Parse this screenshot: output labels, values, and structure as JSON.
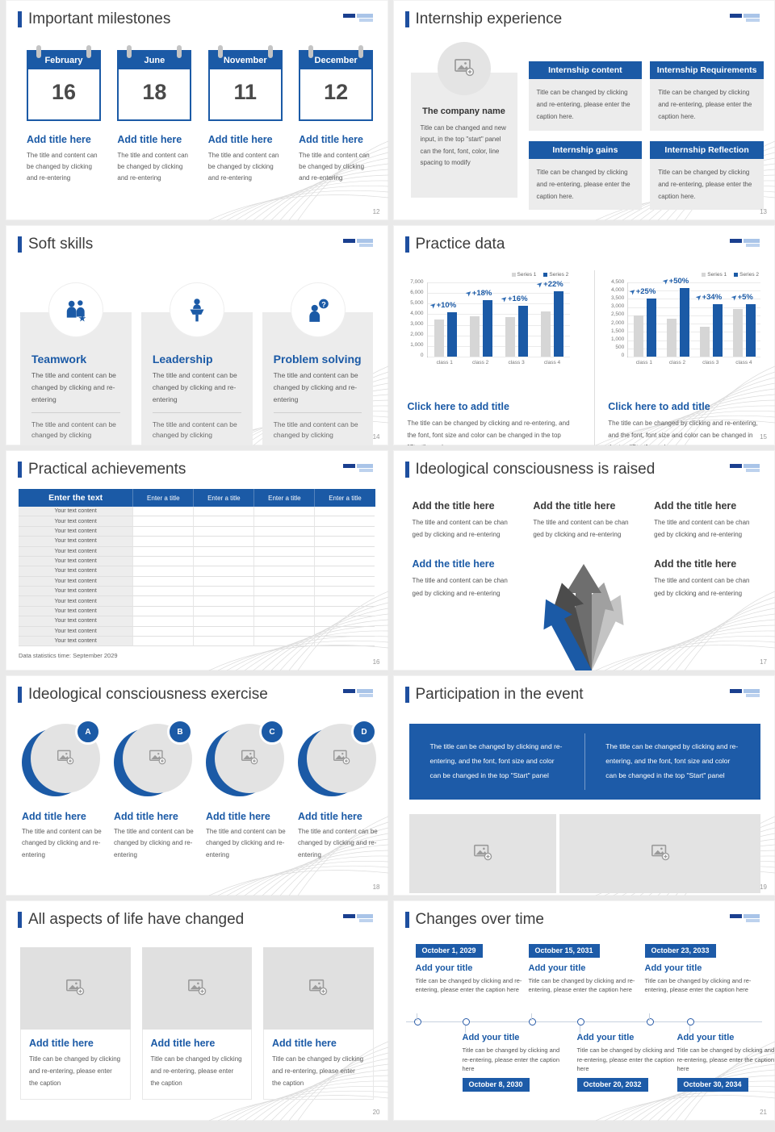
{
  "theme": {
    "primary_blue": "#1b5aa6",
    "accent_bar_blue": "#1e4f9f",
    "series1_gray": "#d6d6d6",
    "series2_blue": "#1b5aa6",
    "card_gray": "#ececec"
  },
  "slides": {
    "milestones": {
      "title": "Important milestones",
      "page": "12",
      "items": [
        {
          "month": "February",
          "day": "16",
          "heading": "Add title here",
          "caption": "The title and content can be changed by clicking and re-entering"
        },
        {
          "month": "June",
          "day": "18",
          "heading": "Add title here",
          "caption": "The title and content can be changed by clicking and re-entering"
        },
        {
          "month": "November",
          "day": "11",
          "heading": "Add title here",
          "caption": "The title and content can be changed by clicking and re-entering"
        },
        {
          "month": "December",
          "day": "12",
          "heading": "Add title here",
          "caption": "The title and content can be changed by clicking and re-entering"
        }
      ]
    },
    "internship": {
      "title": "Internship experience",
      "page": "13",
      "company": {
        "name": "The company name",
        "caption": "Title can be changed and new input, in the top \"start\" panel can the font, font, color, line spacing to modify"
      },
      "boxes": [
        {
          "header": "Internship content",
          "caption": "Title can be changed by clicking and re-entering, please enter the caption here."
        },
        {
          "header": "Internship Requirements",
          "caption": "Title can be changed by clicking and re-entering, please enter the caption here."
        },
        {
          "header": "Internship gains",
          "caption": "Title can be changed by clicking and re-entering, please enter the caption here."
        },
        {
          "header": "Internship Reflection",
          "caption": "Title can be changed by clicking and re-entering, please enter the caption here."
        }
      ]
    },
    "soft_skills": {
      "title": "Soft skills",
      "page": "14",
      "cards": [
        {
          "icon": "teamwork-icon",
          "heading": "Teamwork",
          "body": "The title and content can be changed by clicking and re-entering",
          "footer": "The title and content can be changed by clicking"
        },
        {
          "icon": "leadership-icon",
          "heading": "Leadership",
          "body": "The title and content can be changed by clicking and re-entering",
          "footer": "The title and content can be changed by clicking"
        },
        {
          "icon": "problem-solving-icon",
          "heading": "Problem solving",
          "body": "The title and content can be changed by clicking and re-entering",
          "footer": "The title and content can be changed by clicking"
        }
      ]
    },
    "practice_data": {
      "title": "Practice data",
      "page": "15",
      "panels": [
        {
          "link": "Click here to add title",
          "caption": "The title can be changed by clicking and re-entering, and the font, font size and color can be changed in the top \"Start\" panel"
        },
        {
          "link": "Click here to add title",
          "caption": "The title can be changed by clicking and re-entering, and the font, font size and color can be changed in the top \"Start\" panel"
        }
      ]
    },
    "achievements": {
      "title": "Practical achievements",
      "page": "16",
      "table": {
        "first_header": "Enter the text",
        "other_headers": [
          "Enter a title",
          "Enter a title",
          "Enter a title",
          "Enter a title"
        ],
        "row_label": "Your text content",
        "row_count": 14
      },
      "footnote": "Data statistics time: September 2029"
    },
    "raised": {
      "title": "Ideological consciousness is raised",
      "page": "17",
      "blocks": [
        {
          "heading": "Add the title here",
          "caption": "The title and content can be chan ged by clicking and re-entering"
        },
        {
          "heading": "Add the title here",
          "caption": "The title and content can be chan ged by clicking and re-entering"
        },
        {
          "heading": "Add the title here",
          "caption": "The title and content can be chan ged by clicking and re-entering"
        },
        {
          "heading": "Add the title here",
          "caption": "The title and content can be chan ged by clicking and re-entering"
        },
        {
          "heading": "Add the title here",
          "caption": "The title and content can be chan ged by clicking and re-entering"
        }
      ]
    },
    "exercise": {
      "title": "Ideological consciousness exercise",
      "page": "18",
      "items": [
        {
          "badge": "A",
          "heading": "Add title here",
          "caption": "The title and content can be changed by clicking and re-entering"
        },
        {
          "badge": "B",
          "heading": "Add title here",
          "caption": "The title and content can be changed by clicking and re-entering"
        },
        {
          "badge": "C",
          "heading": "Add title here",
          "caption": "The title and content can be changed by clicking and re-entering"
        },
        {
          "badge": "D",
          "heading": "Add title here",
          "caption": "The title and content can be changed by clicking and re-entering"
        }
      ]
    },
    "participation": {
      "title": "Participation in the event",
      "page": "19",
      "banners": [
        {
          "text": "The title can be changed by clicking and re-entering, and the font, font size and color can be changed in the top \"Start\" panel"
        },
        {
          "text": "The title can be changed by clicking and re-entering, and the font, font size and color can be changed in the top \"Start\" panel"
        }
      ]
    },
    "life_changed": {
      "title": "All aspects of life have changed",
      "page": "20",
      "cards": [
        {
          "heading": "Add title here",
          "caption": "Title can be changed by clicking and re-entering, please enter the caption"
        },
        {
          "heading": "Add title here",
          "caption": "Title can be changed by clicking and re-entering, please enter the caption"
        },
        {
          "heading": "Add title here",
          "caption": "Title can be changed by clicking and re-entering, please enter the caption"
        }
      ]
    },
    "timeline": {
      "title": "Changes over time",
      "page": "21",
      "top": [
        {
          "date": "October 1, 2029",
          "heading": "Add your title",
          "caption": "Title can be changed by clicking and re-entering, please enter the caption here"
        },
        {
          "date": "October 15, 2031",
          "heading": "Add your title",
          "caption": "Title can be changed by clicking and re-entering, please enter the caption here"
        },
        {
          "date": "October 23, 2033",
          "heading": "Add your title",
          "caption": "Title can be changed by clicking and re-entering, please enter the caption here"
        }
      ],
      "bottom": [
        {
          "date": "October 8, 2030",
          "heading": "Add your title",
          "caption": "Title can be changed by clicking and re-entering, please enter the caption here"
        },
        {
          "date": "October 20, 2032",
          "heading": "Add your title",
          "caption": "Title can be changed by clicking and re-entering, please enter the caption here"
        },
        {
          "date": "October 30, 2034",
          "heading": "Add your title",
          "caption": "Title can be changed by clicking and re-entering, please enter the caption here"
        }
      ]
    }
  },
  "chart_data": [
    {
      "type": "bar",
      "title": "",
      "categories": [
        "class 1",
        "class 2",
        "class 3",
        "class 4"
      ],
      "series": [
        {
          "name": "Series 1",
          "values": [
            3500,
            3800,
            3700,
            4300
          ]
        },
        {
          "name": "Series 2",
          "values": [
            4200,
            5300,
            4800,
            6200
          ]
        }
      ],
      "annotations": [
        "+10%",
        "+18%",
        "+16%",
        "+22%"
      ],
      "xlabel": "",
      "ylabel": "",
      "ylim": [
        0,
        7000
      ],
      "ytick_step": 1000,
      "grid": true,
      "legend_position": "top-right"
    },
    {
      "type": "bar",
      "title": "",
      "categories": [
        "class 1",
        "class 2",
        "class 3",
        "class 4"
      ],
      "series": [
        {
          "name": "Series 1",
          "values": [
            2500,
            2300,
            1800,
            2900
          ]
        },
        {
          "name": "Series 2",
          "values": [
            3500,
            4150,
            3200,
            3200
          ]
        }
      ],
      "annotations": [
        "+25%",
        "+50%",
        "+34%",
        "+5%"
      ],
      "xlabel": "",
      "ylabel": "",
      "ylim": [
        0,
        4500
      ],
      "ytick_step": 500,
      "grid": true,
      "legend_position": "top-right"
    }
  ]
}
